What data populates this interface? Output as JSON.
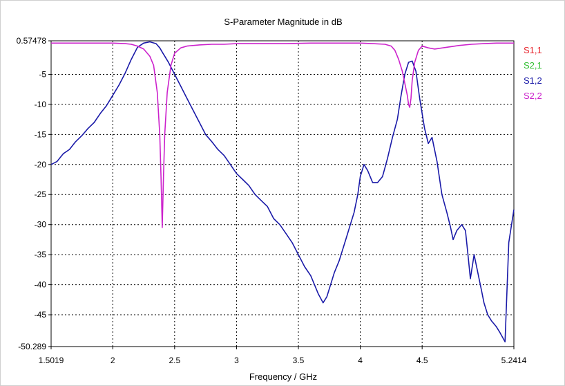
{
  "chart_data": {
    "type": "line",
    "title": "S-Parameter Magnitude in dB",
    "xlabel": "Frequency / GHz",
    "ylabel": "",
    "xlim": [
      1.5019,
      5.2414
    ],
    "ylim": [
      -50.289,
      0.57478
    ],
    "x_ticks": [
      {
        "v": 1.5019,
        "label": "1.5019"
      },
      {
        "v": 2,
        "label": "2"
      },
      {
        "v": 2.5,
        "label": "2.5"
      },
      {
        "v": 3,
        "label": "3"
      },
      {
        "v": 3.5,
        "label": "3.5"
      },
      {
        "v": 4,
        "label": "4"
      },
      {
        "v": 4.5,
        "label": "4.5"
      },
      {
        "v": 5.2414,
        "label": "5.2414"
      }
    ],
    "y_ticks": [
      {
        "v": 0.57478,
        "label": "0.57478"
      },
      {
        "v": -5,
        "label": "-5"
      },
      {
        "v": -10,
        "label": "-10"
      },
      {
        "v": -15,
        "label": "-15"
      },
      {
        "v": -20,
        "label": "-20"
      },
      {
        "v": -25,
        "label": "-25"
      },
      {
        "v": -30,
        "label": "-30"
      },
      {
        "v": -35,
        "label": "-35"
      },
      {
        "v": -40,
        "label": "-40"
      },
      {
        "v": -45,
        "label": "-45"
      },
      {
        "v": -50.289,
        "label": "-50.289"
      }
    ],
    "grid": true,
    "legend_position": "right",
    "series": [
      {
        "name": "S1,1",
        "color": "#e8262e",
        "x": [],
        "y": []
      },
      {
        "name": "S2,1",
        "color": "#2fbf2f",
        "x": [],
        "y": []
      },
      {
        "name": "S1,2",
        "color": "#1a1aa8",
        "x": [
          1.5019,
          1.55,
          1.6,
          1.65,
          1.7,
          1.75,
          1.8,
          1.85,
          1.9,
          1.95,
          2.0,
          2.05,
          2.1,
          2.15,
          2.2,
          2.25,
          2.3,
          2.35,
          2.38,
          2.4,
          2.45,
          2.5,
          2.55,
          2.6,
          2.65,
          2.7,
          2.75,
          2.8,
          2.85,
          2.9,
          2.95,
          3.0,
          3.05,
          3.1,
          3.15,
          3.2,
          3.25,
          3.3,
          3.35,
          3.4,
          3.45,
          3.5,
          3.55,
          3.6,
          3.63,
          3.66,
          3.7,
          3.73,
          3.76,
          3.79,
          3.83,
          3.86,
          3.89,
          3.92,
          3.95,
          3.98,
          4.0,
          4.03,
          4.06,
          4.1,
          4.14,
          4.18,
          4.22,
          4.26,
          4.3,
          4.33,
          4.36,
          4.39,
          4.42,
          4.45,
          4.48,
          4.52,
          4.55,
          4.58,
          4.62,
          4.66,
          4.7,
          4.73,
          4.75,
          4.78,
          4.82,
          4.85,
          4.87,
          4.89,
          4.92,
          4.95,
          4.98,
          5.0,
          5.03,
          5.06,
          5.1,
          5.13,
          5.17,
          5.2,
          5.2414
        ],
        "y": [
          -20,
          -19.5,
          -18.2,
          -17.5,
          -16.2,
          -15.2,
          -14,
          -13,
          -11.5,
          -10.2,
          -8.5,
          -6.8,
          -4.8,
          -2.5,
          -0.5,
          0.2,
          0.4,
          0.1,
          -0.6,
          -1.3,
          -3.0,
          -5,
          -7,
          -9,
          -11,
          -13,
          -15,
          -16.2,
          -17.5,
          -18.5,
          -20,
          -21.5,
          -22.5,
          -23.5,
          -25,
          -26,
          -27,
          -29,
          -30,
          -31.5,
          -33,
          -35,
          -37,
          -38.5,
          -40,
          -41.5,
          -43,
          -42,
          -40,
          -38,
          -36,
          -34,
          -32,
          -30,
          -28,
          -25,
          -22,
          -20,
          -21,
          -23,
          -23,
          -22,
          -19,
          -15.5,
          -12.5,
          -8.5,
          -5,
          -3,
          -2.8,
          -4.5,
          -9,
          -14,
          -16.5,
          -15.5,
          -19.5,
          -25,
          -28,
          -30.5,
          -32.5,
          -31,
          -30,
          -31,
          -35,
          -39,
          -35,
          -38,
          -41,
          -43,
          -45,
          -46,
          -47,
          -48,
          -49.5,
          -33,
          -27.5
        ]
      },
      {
        "name": "S2,2",
        "color": "#cc22cc",
        "x": [
          1.5019,
          1.7,
          1.9,
          2.0,
          2.1,
          2.15,
          2.2,
          2.25,
          2.3,
          2.33,
          2.36,
          2.38,
          2.39,
          2.4,
          2.41,
          2.42,
          2.44,
          2.47,
          2.5,
          2.55,
          2.6,
          2.7,
          2.8,
          2.9,
          3.0,
          3.2,
          3.4,
          3.6,
          3.8,
          4.0,
          4.1,
          4.2,
          4.25,
          4.28,
          4.31,
          4.34,
          4.36,
          4.38,
          4.39,
          4.4,
          4.41,
          4.42,
          4.44,
          4.47,
          4.5,
          4.55,
          4.6,
          4.7,
          4.8,
          4.9,
          5.0,
          5.1,
          5.2414
        ],
        "y": [
          0.2,
          0.2,
          0.2,
          0.2,
          0.1,
          0.0,
          -0.3,
          -0.8,
          -2.0,
          -3.5,
          -8,
          -15,
          -22,
          -30.5,
          -22,
          -15,
          -8,
          -3.5,
          -1.5,
          -0.6,
          -0.3,
          -0.1,
          0.0,
          0.0,
          0.1,
          0.1,
          0.1,
          0.2,
          0.2,
          0.2,
          0.1,
          0.0,
          -0.3,
          -1.0,
          -2.5,
          -4.5,
          -6.5,
          -8.5,
          -10,
          -10.5,
          -9,
          -6,
          -3,
          -1,
          -0.3,
          -0.6,
          -0.8,
          -0.5,
          -0.2,
          0.0,
          0.1,
          0.2,
          0.2
        ]
      }
    ]
  }
}
